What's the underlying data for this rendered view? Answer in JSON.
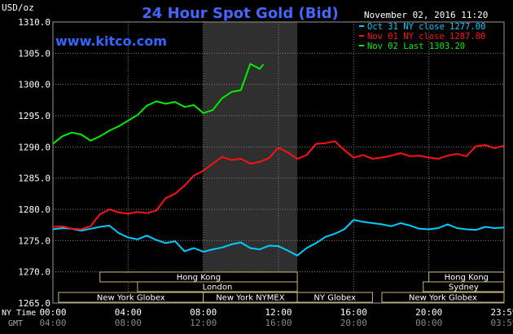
{
  "chart_data": {
    "type": "line",
    "title": "24 Hour Spot Gold (Bid)",
    "watermark": "www.kitco.com",
    "y_unit_label": "USD/oz",
    "timestamp": "November 02, 2016 11:20",
    "ylim": [
      1265,
      1310
    ],
    "y_ticks": [
      "1310.0",
      "1305.0",
      "1300.0",
      "1295.0",
      "1290.0",
      "1285.0",
      "1280.0",
      "1275.0",
      "1270.0",
      "1265.0"
    ],
    "x_ticks_ny": [
      "00:00",
      "04:00",
      "08:00",
      "12:00",
      "16:00",
      "20:00",
      "23:59"
    ],
    "x_ticks_gmt": [
      "04:00",
      "08:00",
      "12:00",
      "16:00",
      "20:00",
      "00:00",
      "03:59"
    ],
    "x_label_ny": "NY Time",
    "x_label_gmt": "GMT",
    "shaded_region_hours": [
      8,
      13
    ],
    "colors": {
      "background": "#000000",
      "grid": "#808080",
      "title": "#4466ff",
      "watermark": "#3366ff",
      "session_fill": "#2f2f2f",
      "session_box": "#000000",
      "session_border": "#c8b478"
    },
    "sessions": [
      {
        "label": "Hong Kong",
        "start": 2.5,
        "end": 13.0,
        "row": 0
      },
      {
        "label": "Hong Kong",
        "start": 20.0,
        "end": 24.0,
        "row": 0
      },
      {
        "label": "London",
        "start": 4.5,
        "end": 13.0,
        "row": 1
      },
      {
        "label": "Sydney",
        "start": 19.7,
        "end": 24.0,
        "row": 1
      },
      {
        "label": "New York Globex",
        "start": 0.3,
        "end": 8.0,
        "row": 2
      },
      {
        "label": "New York NYMEX",
        "start": 8.0,
        "end": 13.0,
        "row": 2
      },
      {
        "label": "NY Globex",
        "start": 13.0,
        "end": 17.0,
        "row": 2
      },
      {
        "label": "New York Globex",
        "start": 17.5,
        "end": 24.0,
        "row": 2
      }
    ],
    "series": [
      {
        "name": "Oct 31 NY close 1277.00",
        "color": "#00ccff",
        "x": [
          0,
          0.5,
          1,
          1.5,
          2,
          2.5,
          3,
          3.5,
          4,
          4.5,
          5,
          5.5,
          6,
          6.5,
          7,
          7.5,
          8,
          8.5,
          9,
          9.5,
          10,
          10.5,
          11,
          11.5,
          12,
          12.5,
          13,
          13.5,
          14,
          14.5,
          15,
          15.5,
          16,
          16.5,
          17,
          17.5,
          18,
          18.5,
          19,
          19.5,
          20,
          20.5,
          21,
          21.5,
          22,
          22.5,
          23,
          23.5,
          24
        ],
        "y": [
          1276.8,
          1277.0,
          1276.9,
          1276.6,
          1276.9,
          1277.2,
          1277.4,
          1276.2,
          1275.5,
          1275.2,
          1275.8,
          1275.1,
          1274.6,
          1274.9,
          1273.3,
          1273.8,
          1273.2,
          1273.6,
          1273.9,
          1274.4,
          1274.7,
          1273.8,
          1273.6,
          1274.2,
          1274.1,
          1273.4,
          1272.6,
          1273.8,
          1274.6,
          1275.6,
          1276.1,
          1276.8,
          1278.3,
          1278.0,
          1277.8,
          1277.6,
          1277.3,
          1277.8,
          1277.4,
          1276.9,
          1276.8,
          1277.0,
          1277.6,
          1277.0,
          1276.8,
          1276.7,
          1277.2,
          1277.0,
          1277.1
        ]
      },
      {
        "name": "Nov 01 NY close 1287.80",
        "color": "#ff1111",
        "x": [
          0,
          0.5,
          1,
          1.5,
          2,
          2.5,
          3,
          3.5,
          4,
          4.5,
          5,
          5.5,
          6,
          6.5,
          7,
          7.5,
          8,
          8.5,
          9,
          9.5,
          10,
          10.5,
          11,
          11.5,
          12,
          12.5,
          13,
          13.5,
          14,
          14.5,
          15,
          15.5,
          16,
          16.5,
          17,
          17.5,
          18,
          18.5,
          19,
          19.5,
          20,
          20.5,
          21,
          21.5,
          22,
          22.5,
          23,
          23.5,
          24
        ],
        "y": [
          1277.2,
          1277.3,
          1276.9,
          1276.8,
          1277.3,
          1279.2,
          1280.0,
          1279.5,
          1279.3,
          1279.6,
          1279.4,
          1279.8,
          1281.8,
          1282.5,
          1283.8,
          1285.4,
          1286.2,
          1287.3,
          1288.4,
          1287.9,
          1288.1,
          1287.3,
          1287.6,
          1288.2,
          1289.9,
          1289.1,
          1288.1,
          1288.7,
          1290.5,
          1290.6,
          1290.9,
          1289.5,
          1288.3,
          1288.7,
          1288.1,
          1288.3,
          1288.6,
          1289.0,
          1288.5,
          1288.6,
          1288.3,
          1288.1,
          1288.6,
          1288.9,
          1288.5,
          1290.1,
          1290.3,
          1289.8,
          1290.2
        ]
      },
      {
        "name": "Nov 02 Last 1303.20",
        "color": "#00ee00",
        "x": [
          0,
          0.5,
          1,
          1.5,
          2,
          2.5,
          3,
          3.5,
          4,
          4.5,
          5,
          5.5,
          6,
          6.5,
          7,
          7.5,
          8,
          8.5,
          9,
          9.5,
          10,
          10.5,
          11,
          11.2
        ],
        "y": [
          1290.5,
          1291.7,
          1292.3,
          1292.0,
          1291.0,
          1291.7,
          1292.6,
          1293.3,
          1294.2,
          1295.1,
          1296.6,
          1297.3,
          1296.9,
          1297.2,
          1296.4,
          1296.7,
          1295.4,
          1295.9,
          1297.8,
          1298.8,
          1299.1,
          1303.3,
          1302.5,
          1303.2
        ]
      }
    ]
  }
}
